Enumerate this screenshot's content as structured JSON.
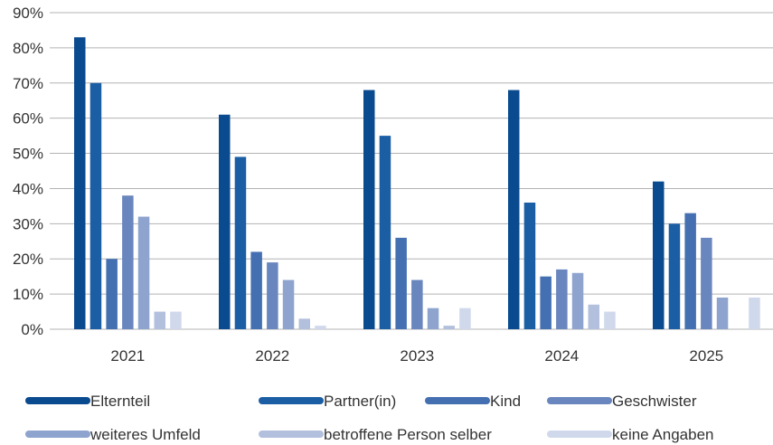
{
  "chart_data": {
    "type": "bar",
    "categories": [
      "2021",
      "2022",
      "2023",
      "2024",
      "2025"
    ],
    "ylim": [
      0,
      90
    ],
    "yticks": [
      0,
      10,
      20,
      30,
      40,
      50,
      60,
      70,
      80,
      90
    ],
    "ytick_labels": [
      "0%",
      "10%",
      "20%",
      "30%",
      "40%",
      "50%",
      "60%",
      "70%",
      "80%",
      "90%"
    ],
    "grid": true,
    "legend_position": "bottom",
    "series": [
      {
        "name": "Elternteil",
        "color": "#0a4a8f",
        "values": [
          83,
          61,
          68,
          68,
          42
        ]
      },
      {
        "name": "Partner(in)",
        "color": "#1b5ea4",
        "values": [
          70,
          49,
          55,
          36,
          30
        ]
      },
      {
        "name": "Kind",
        "color": "#4470b1",
        "values": [
          20,
          22,
          26,
          15,
          33
        ]
      },
      {
        "name": "Geschwister",
        "color": "#6a86be",
        "values": [
          38,
          19,
          14,
          17,
          26
        ]
      },
      {
        "name": "weiteres Umfeld",
        "color": "#8ea4cf",
        "values": [
          32,
          14,
          6,
          16,
          9
        ]
      },
      {
        "name": "betroffene Person selber",
        "color": "#b2c0de",
        "values": [
          5,
          3,
          1,
          7,
          0
        ]
      },
      {
        "name": "keine Angaben",
        "color": "#d0d9ec",
        "values": [
          5,
          1,
          6,
          5,
          9
        ]
      }
    ]
  }
}
